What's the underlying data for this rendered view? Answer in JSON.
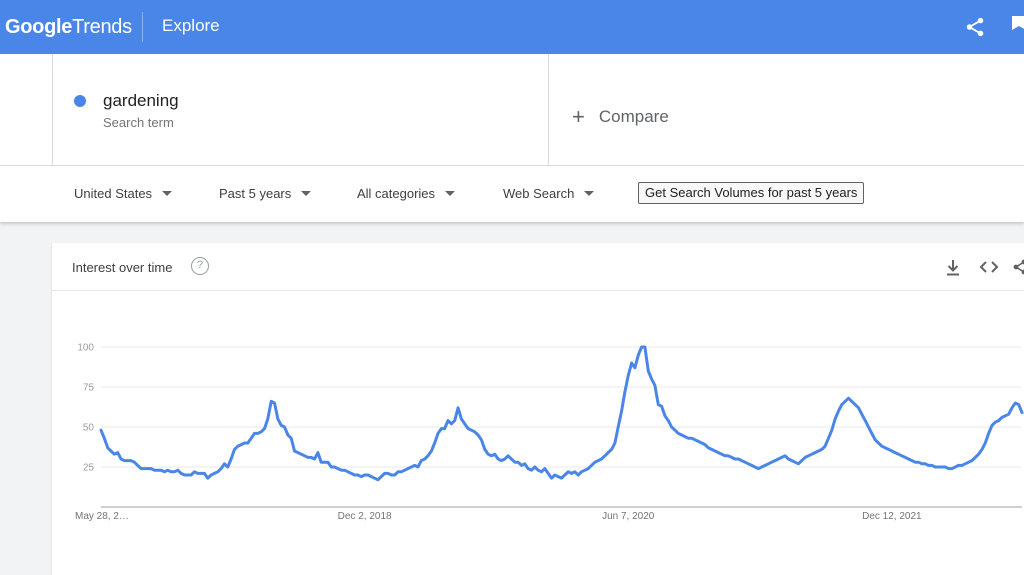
{
  "header": {
    "logo_google": "Google",
    "logo_trends": "Trends",
    "title": "Explore",
    "share_icon": "share-icon",
    "feedback_icon": "flag-icon"
  },
  "search": {
    "term": "gardening",
    "term_type": "Search term",
    "term_color": "#4a86e8",
    "compare_label": "Compare"
  },
  "filters": {
    "region": "United States",
    "time_range": "Past 5 years",
    "category": "All categories",
    "search_type": "Web Search",
    "volume_button": "Get Search Volumes for past 5 years"
  },
  "card": {
    "title": "Interest over time",
    "help_icon": "help-icon",
    "help_glyph": "?",
    "download_icon": "download-icon",
    "embed_icon": "embed-code-icon",
    "share_icon": "share-icon"
  },
  "chart_data": {
    "type": "line",
    "title": "Interest over time",
    "xlabel": "",
    "ylabel": "",
    "ylim": [
      0,
      100
    ],
    "y_ticks": [
      25,
      50,
      75,
      100
    ],
    "x_tick_labels": [
      "May 28, 2…",
      "Dec 2, 2018",
      "Jun 7, 2020",
      "Dec 12, 2021"
    ],
    "x_tick_index": [
      0,
      79,
      158,
      237
    ],
    "grid": true,
    "line_color": "#4a86e8",
    "series": [
      {
        "name": "gardening",
        "values": [
          48,
          43,
          37,
          35,
          33,
          34,
          30,
          29,
          29,
          29,
          28,
          26,
          24,
          24,
          24,
          24,
          23,
          23,
          23,
          22,
          23,
          22,
          22,
          23,
          21,
          20,
          20,
          20,
          22,
          21,
          21,
          21,
          18,
          20,
          21,
          22,
          24,
          27,
          25,
          30,
          36,
          38,
          39,
          40,
          40,
          43,
          46,
          46,
          47,
          49,
          55,
          66,
          65,
          55,
          51,
          50,
          45,
          43,
          35,
          34,
          33,
          32,
          31,
          31,
          30,
          34,
          28,
          28,
          28,
          25,
          25,
          24,
          23,
          23,
          22,
          21,
          20,
          20,
          19,
          20,
          20,
          19,
          18,
          17,
          19,
          21,
          21,
          20,
          20,
          22,
          22,
          23,
          24,
          25,
          26,
          25,
          29,
          30,
          32,
          35,
          40,
          46,
          49,
          49,
          54,
          52,
          54,
          62,
          55,
          52,
          49,
          48,
          47,
          45,
          42,
          36,
          33,
          32,
          33,
          30,
          29,
          30,
          32,
          30,
          28,
          28,
          26,
          27,
          24,
          23,
          25,
          23,
          22,
          24,
          21,
          18,
          20,
          19,
          18,
          20,
          22,
          21,
          22,
          20,
          22,
          23,
          24,
          26,
          28,
          29,
          30,
          32,
          34,
          36,
          40,
          50,
          60,
          72,
          82,
          90,
          87,
          95,
          100,
          100,
          85,
          80,
          76,
          64,
          63,
          57,
          54,
          50,
          48,
          46,
          45,
          44,
          43,
          43,
          42,
          41,
          40,
          39,
          37,
          36,
          35,
          34,
          33,
          32,
          32,
          31,
          30,
          30,
          29,
          28,
          27,
          26,
          25,
          24,
          25,
          26,
          27,
          28,
          29,
          30,
          31,
          32,
          30,
          29,
          28,
          27,
          29,
          31,
          32,
          33,
          34,
          35,
          36,
          38,
          43,
          48,
          55,
          60,
          64,
          66,
          68,
          66,
          64,
          62,
          58,
          54,
          50,
          46,
          42,
          40,
          38,
          37,
          36,
          35,
          34,
          33,
          32,
          31,
          30,
          29,
          28,
          28,
          27,
          27,
          26,
          26,
          25,
          25,
          25,
          25,
          24,
          24,
          25,
          26,
          26,
          27,
          28,
          29,
          31,
          33,
          36,
          40,
          46,
          51,
          53,
          54,
          56,
          57,
          58,
          62,
          65,
          64,
          59
        ]
      }
    ]
  }
}
